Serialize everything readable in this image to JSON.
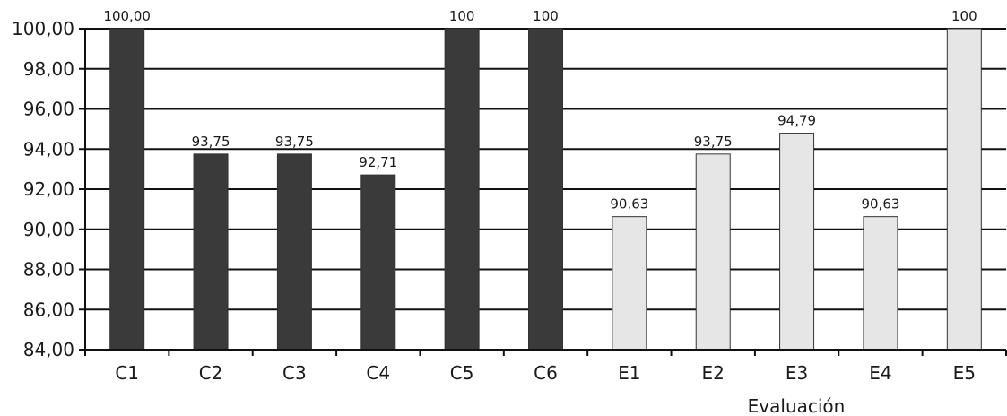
{
  "chart_data": {
    "type": "bar",
    "categories": [
      "C1",
      "C2",
      "C3",
      "C4",
      "C5",
      "C6",
      "E1",
      "E2",
      "E3",
      "E4",
      "E5"
    ],
    "values": [
      100,
      93.75,
      93.75,
      92.71,
      100,
      100,
      90.63,
      93.75,
      94.79,
      90.63,
      100
    ],
    "data_labels": [
      "100,00",
      "93,75",
      "93,75",
      "92,71",
      "100",
      "100",
      "90.63",
      "93,75",
      "94,79",
      "90,63",
      "100"
    ],
    "group_colors": [
      "#3a3a3a",
      "#3a3a3a",
      "#3a3a3a",
      "#3a3a3a",
      "#3a3a3a",
      "#3a3a3a",
      "#e6e6e6",
      "#e6e6e6",
      "#e6e6e6",
      "#e6e6e6",
      "#e6e6e6"
    ],
    "title": "",
    "xlabel": "Evaluación",
    "ylabel": "",
    "ylim": [
      84,
      100
    ],
    "yticks": [
      84,
      86,
      88,
      90,
      92,
      94,
      96,
      98,
      100
    ],
    "ytick_labels": [
      "84,00",
      "86,00",
      "88,00",
      "90,00",
      "92,00",
      "94,00",
      "96,00",
      "98,00",
      "100,00"
    ],
    "grid": true,
    "legend": "none"
  }
}
